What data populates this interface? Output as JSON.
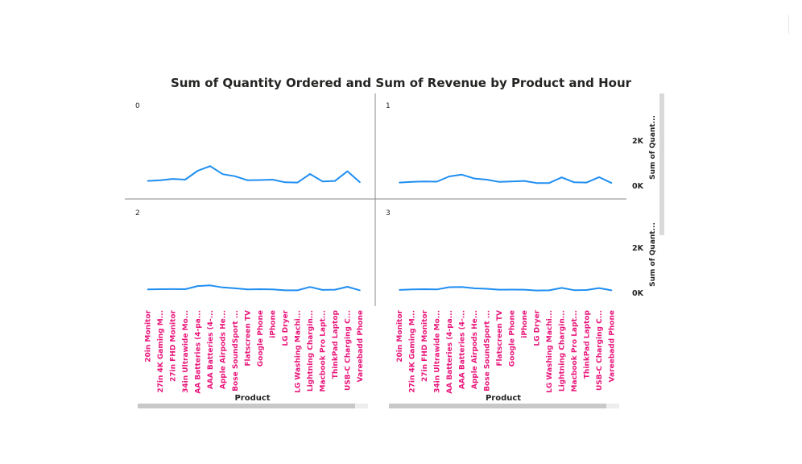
{
  "chart_data": {
    "type": "line",
    "title": "Sum of Quantity Ordered and Sum of Revenue by Product and Hour",
    "xlabel": "Product",
    "ylabel": "Sum of Quant...",
    "y_ticks": [
      "0K",
      "2K"
    ],
    "ylim": [
      0,
      3500
    ],
    "grid": false,
    "line_color": "#1f8ef1",
    "label_color": "#e8157a",
    "categories": [
      "20in Monitor",
      "27in 4K Gaming M...",
      "27in FHD Monitor",
      "34in Ultrawide Mo...",
      "AA Batteries (4-pa...",
      "AAA Batteries (4-...",
      "Apple Airpods He...",
      "Bose SoundSport ...",
      "Flatscreen TV",
      "Google Phone",
      "iPhone",
      "LG Dryer",
      "LG Washing Machi...",
      "Lightning Chargin...",
      "Macbook Pro Lapt...",
      "ThinkPad Laptop",
      "USB-C Charging C...",
      "Vareebadd Phone"
    ],
    "panels": [
      {
        "label": "0",
        "values": [
          120,
          150,
          210,
          180,
          570,
          780,
          420,
          330,
          150,
          160,
          180,
          60,
          50,
          430,
          100,
          120,
          550,
          60
        ]
      },
      {
        "label": "1",
        "values": [
          50,
          80,
          100,
          90,
          320,
          400,
          230,
          180,
          80,
          100,
          120,
          30,
          30,
          280,
          60,
          50,
          290,
          30
        ]
      },
      {
        "label": "2",
        "values": [
          60,
          70,
          75,
          70,
          210,
          240,
          150,
          110,
          60,
          70,
          60,
          20,
          20,
          170,
          40,
          50,
          180,
          20
        ]
      },
      {
        "label": "3",
        "values": [
          40,
          60,
          70,
          60,
          160,
          170,
          110,
          90,
          50,
          55,
          50,
          15,
          20,
          130,
          30,
          35,
          120,
          20
        ]
      }
    ]
  }
}
